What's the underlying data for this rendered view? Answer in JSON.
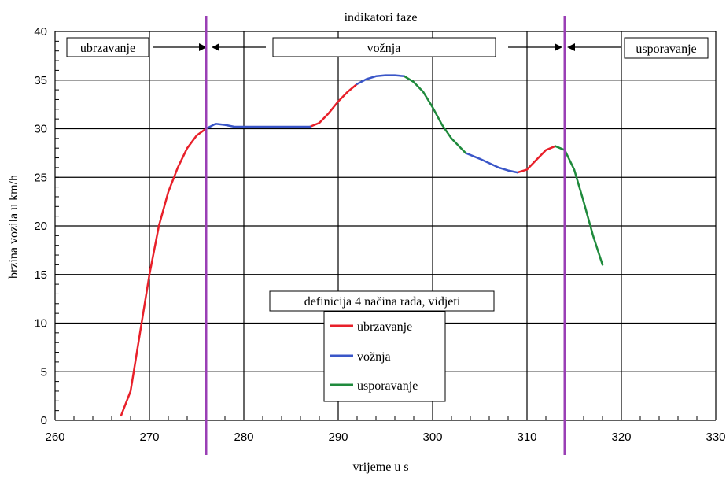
{
  "chart_data": {
    "type": "line",
    "title": "indikatori faze",
    "xlabel": "vrijeme u s",
    "ylabel": "brzina vozila u km/h",
    "xlim": [
      260,
      330
    ],
    "ylim": [
      0,
      40
    ],
    "x_ticks": [
      260,
      270,
      280,
      290,
      300,
      310,
      320,
      330
    ],
    "y_ticks": [
      0,
      5,
      10,
      15,
      20,
      25,
      30,
      35,
      40
    ],
    "grid": true,
    "series": [
      {
        "name": "ubrzavanje",
        "color": "#e8202a",
        "points": [
          [
            267,
            0.5
          ],
          [
            268,
            3
          ],
          [
            269,
            9
          ],
          [
            270,
            15
          ],
          [
            271,
            20
          ],
          [
            272,
            23.5
          ],
          [
            273,
            26
          ],
          [
            274,
            28
          ],
          [
            275,
            29.3
          ],
          [
            276,
            30
          ]
        ]
      },
      {
        "name": "ubrzavanje",
        "color": "#e8202a",
        "points": [
          [
            287,
            30.2
          ],
          [
            288,
            30.6
          ],
          [
            289,
            31.6
          ],
          [
            290,
            32.8
          ],
          [
            291,
            33.8
          ],
          [
            292,
            34.6
          ]
        ]
      },
      {
        "name": "ubrzavanje",
        "color": "#e8202a",
        "points": [
          [
            309,
            25.5
          ],
          [
            310,
            25.8
          ],
          [
            311,
            26.8
          ],
          [
            312,
            27.8
          ],
          [
            313,
            28.2
          ]
        ]
      },
      {
        "name": "vožnja",
        "color": "#3a56c8",
        "points": [
          [
            276,
            30
          ],
          [
            277,
            30.5
          ],
          [
            278,
            30.4
          ],
          [
            279,
            30.2
          ],
          [
            280,
            30.2
          ],
          [
            282,
            30.2
          ],
          [
            284,
            30.2
          ],
          [
            286,
            30.2
          ],
          [
            287,
            30.2
          ]
        ]
      },
      {
        "name": "vožnja",
        "color": "#3a56c8",
        "points": [
          [
            292,
            34.6
          ],
          [
            293,
            35.1
          ],
          [
            294,
            35.4
          ],
          [
            295,
            35.5
          ],
          [
            296,
            35.5
          ],
          [
            297,
            35.4
          ]
        ]
      },
      {
        "name": "vožnja",
        "color": "#3a56c8",
        "points": [
          [
            303.5,
            27.5
          ],
          [
            305,
            26.9
          ],
          [
            307,
            26
          ],
          [
            308,
            25.7
          ],
          [
            309,
            25.5
          ]
        ]
      },
      {
        "name": "usporavanje",
        "color": "#1f8a3c",
        "points": [
          [
            297,
            35.4
          ],
          [
            298,
            34.8
          ],
          [
            299,
            33.8
          ],
          [
            300,
            32.2
          ],
          [
            301,
            30.4
          ],
          [
            302,
            29
          ],
          [
            303,
            28
          ],
          [
            303.5,
            27.5
          ]
        ]
      },
      {
        "name": "usporavanje",
        "color": "#1f8a3c",
        "points": [
          [
            313,
            28.2
          ],
          [
            314,
            27.8
          ],
          [
            315,
            25.8
          ],
          [
            316,
            22.5
          ],
          [
            317,
            19
          ],
          [
            318,
            16
          ]
        ]
      }
    ],
    "phase_lines_x": [
      276,
      314
    ],
    "phase_labels": [
      "ubrzavanje",
      "vožnja",
      "usporavanje"
    ],
    "legend_title": "definicija 4 načina rada, vidjeti",
    "legend": [
      {
        "label": "ubrzavanje",
        "color": "#e8202a"
      },
      {
        "label": "vožnja",
        "color": "#3a56c8"
      },
      {
        "label": "usporavanje",
        "color": "#1f8a3c"
      }
    ],
    "legend_position": "center-bottom"
  },
  "colors": {
    "phase_line": "#9a3fb5",
    "grid": "#000000"
  }
}
